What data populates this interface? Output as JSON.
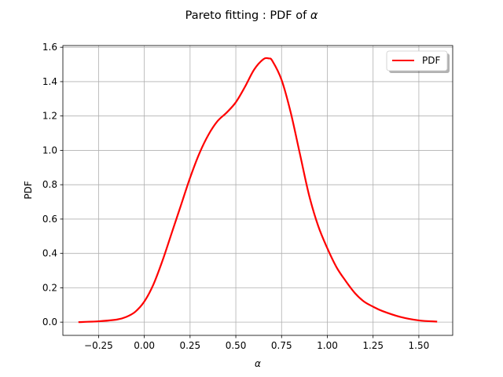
{
  "chart_data": {
    "type": "line",
    "title_prefix": "Pareto fitting : PDF of ",
    "title_symbol": "α",
    "xlabel": "α",
    "ylabel": "PDF",
    "xlim": [
      -0.445,
      1.685
    ],
    "ylim": [
      -0.077,
      1.61
    ],
    "grid": true,
    "legend_position": "top-right",
    "x_ticks": [
      -0.25,
      0.0,
      0.25,
      0.5,
      0.75,
      1.0,
      1.25,
      1.5
    ],
    "x_tick_labels": [
      "−0.25",
      "0.00",
      "0.25",
      "0.50",
      "0.75",
      "1.00",
      "1.25",
      "1.50"
    ],
    "y_ticks": [
      0.0,
      0.2,
      0.4,
      0.6,
      0.8,
      1.0,
      1.2,
      1.4,
      1.6
    ],
    "y_tick_labels": [
      "0.0",
      "0.2",
      "0.4",
      "0.6",
      "0.8",
      "1.0",
      "1.2",
      "1.4",
      "1.6"
    ],
    "series": [
      {
        "name": "PDF",
        "color": "#ff0000",
        "x": [
          -0.36,
          -0.25,
          -0.15,
          -0.1,
          -0.05,
          0.0,
          0.05,
          0.1,
          0.15,
          0.2,
          0.25,
          0.3,
          0.35,
          0.4,
          0.45,
          0.5,
          0.55,
          0.6,
          0.65,
          0.68,
          0.7,
          0.75,
          0.8,
          0.85,
          0.9,
          0.95,
          1.0,
          1.05,
          1.1,
          1.15,
          1.2,
          1.25,
          1.3,
          1.4,
          1.5,
          1.6
        ],
        "y": [
          0.0,
          0.005,
          0.015,
          0.03,
          0.06,
          0.12,
          0.22,
          0.36,
          0.52,
          0.68,
          0.84,
          0.98,
          1.09,
          1.17,
          1.22,
          1.28,
          1.37,
          1.47,
          1.53,
          1.535,
          1.52,
          1.41,
          1.22,
          0.98,
          0.74,
          0.56,
          0.43,
          0.32,
          0.24,
          0.17,
          0.12,
          0.09,
          0.065,
          0.03,
          0.01,
          0.003
        ]
      }
    ]
  }
}
